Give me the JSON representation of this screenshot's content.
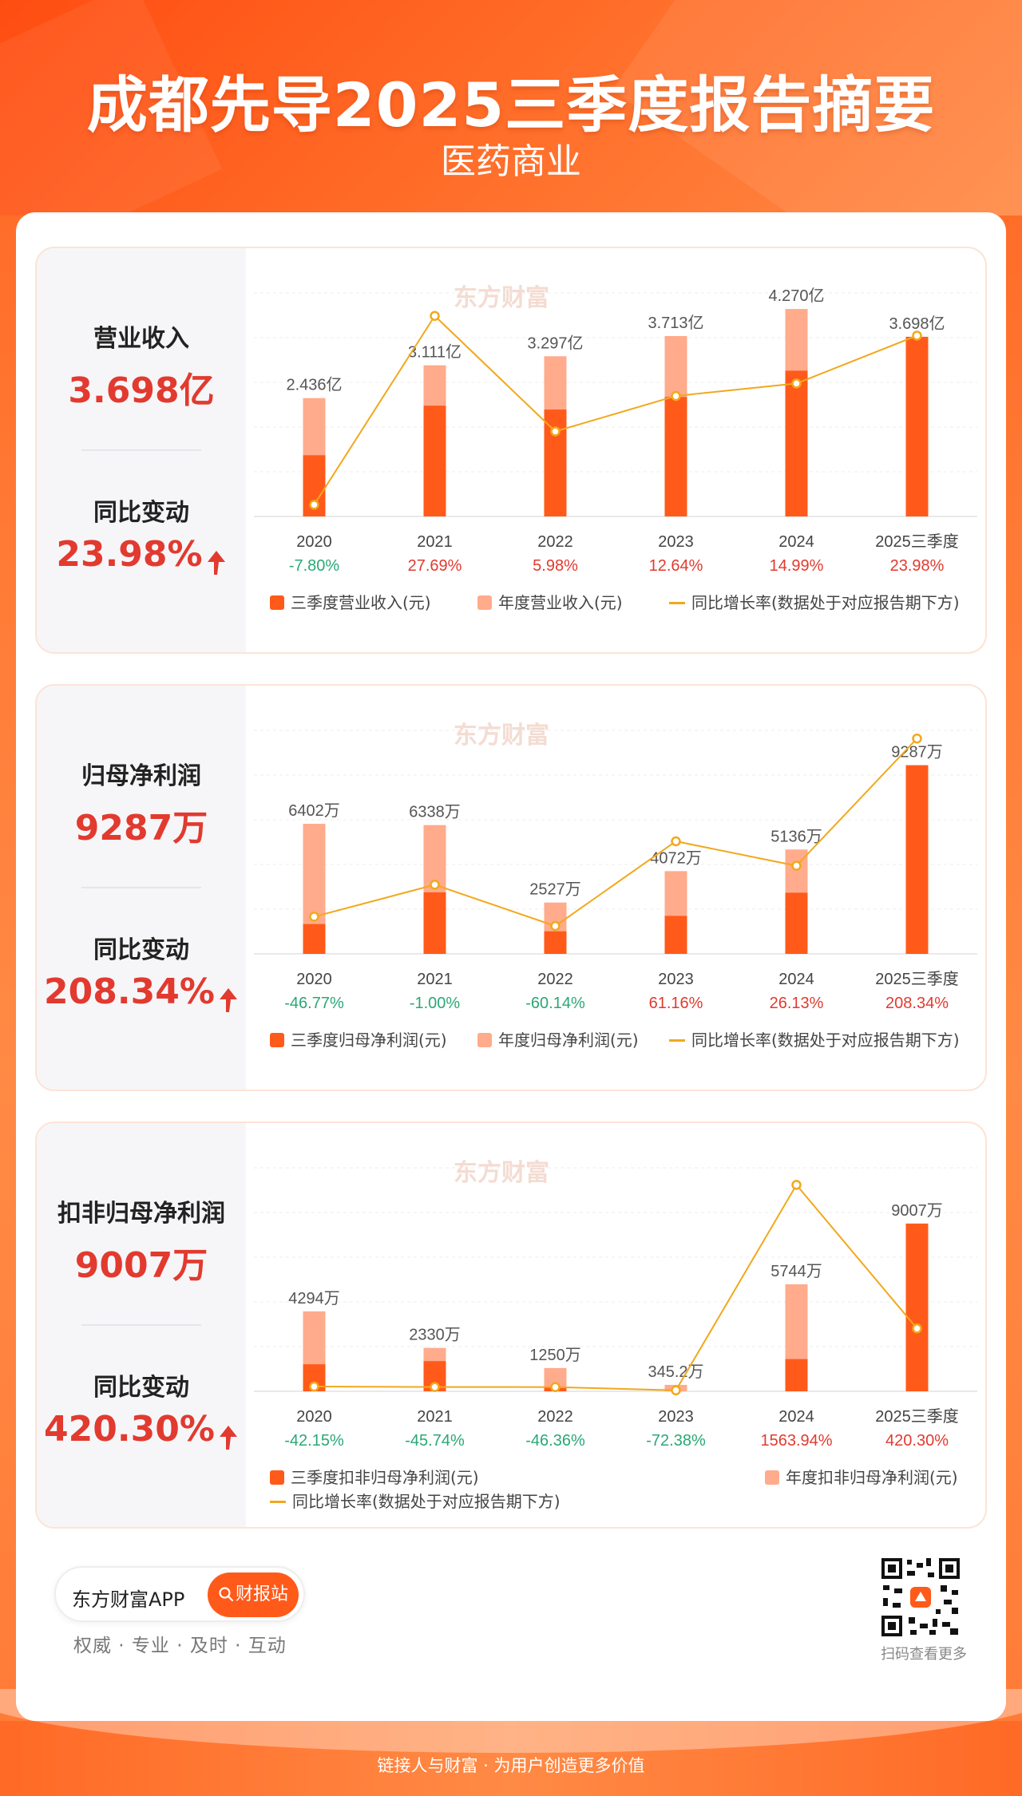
{
  "header": {
    "title": "成都先导2025三季度报告摘要",
    "subtitle": "医药商业"
  },
  "colors": {
    "bar_q3": "#ff5a1a",
    "bar_annual": "#ffab8c",
    "line": "#f2a81c",
    "positive": "#e23a2f",
    "negative": "#2aa876",
    "watermark": "东方财富"
  },
  "sections": [
    {
      "metric_label": "营业收入",
      "metric_value": "3.698亿",
      "yoy_label": "同比变动",
      "yoy_value": "23.98%",
      "legend": {
        "q3": "三季度营业收入(元)",
        "annual": "年度营业收入(元)",
        "line": "同比增长率(数据处于对应报告期下方)"
      }
    },
    {
      "metric_label": "归母净利润",
      "metric_value": "9287万",
      "yoy_label": "同比变动",
      "yoy_value": "208.34%",
      "legend": {
        "q3": "三季度归母净利润(元)",
        "annual": "年度归母净利润(元)",
        "line": "同比增长率(数据处于对应报告期下方)"
      }
    },
    {
      "metric_label": "扣非归母净利润",
      "metric_value": "9007万",
      "yoy_label": "同比变动",
      "yoy_value": "420.30%",
      "legend": {
        "q3": "三季度扣非归母净利润(元)",
        "annual": "年度扣非归母净利润(元)",
        "line": "同比增长率(数据处于对应报告期下方)"
      }
    }
  ],
  "chart_data": [
    {
      "type": "bar",
      "categories": [
        "2020",
        "2021",
        "2022",
        "2023",
        "2024",
        "2025三季度"
      ],
      "unit": "亿",
      "series": [
        {
          "name": "三季度营业收入(元)",
          "values": [
            1.26,
            2.28,
            2.2,
            2.46,
            3.0,
            3.698
          ]
        },
        {
          "name": "年度营业收入(元)",
          "values": [
            2.436,
            3.111,
            3.297,
            3.713,
            4.27,
            null
          ]
        },
        {
          "name": "同比增长率(数据处于对应报告期下方)",
          "values": [
            -7.8,
            27.69,
            5.98,
            12.64,
            14.99,
            23.98
          ]
        }
      ],
      "value_labels": [
        "2.436亿",
        "3.111亿",
        "3.297亿",
        "3.713亿",
        "4.270亿",
        "3.698亿"
      ],
      "yoy_labels": [
        "-7.80%",
        "27.69%",
        "5.98%",
        "12.64%",
        "14.99%",
        "23.98%"
      ],
      "bar_max": 4.6,
      "line_range": [
        -10,
        32
      ]
    },
    {
      "type": "bar",
      "categories": [
        "2020",
        "2021",
        "2022",
        "2023",
        "2024",
        "2025三季度"
      ],
      "unit": "万",
      "series": [
        {
          "name": "三季度归母净利润(元)",
          "values": [
            1470,
            3030,
            1110,
            1870,
            3010,
            9287
          ]
        },
        {
          "name": "年度归母净利润(元)",
          "values": [
            6402,
            6338,
            2527,
            4072,
            5136,
            null
          ]
        },
        {
          "name": "同比增长率(数据处于对应报告期下方)",
          "values": [
            -46.77,
            -1.0,
            -60.14,
            61.16,
            26.13,
            208.34
          ]
        }
      ],
      "value_labels": [
        "6402万",
        "6338万",
        "2527万",
        "4072万",
        "5136万",
        "9287万"
      ],
      "yoy_labels": [
        "-46.77%",
        "-1.00%",
        "-60.14%",
        "61.16%",
        "26.13%",
        "208.34%"
      ],
      "bar_max": 11000,
      "line_range": [
        -100,
        220
      ]
    },
    {
      "type": "bar",
      "categories": [
        "2020",
        "2021",
        "2022",
        "2023",
        "2024",
        "2025三季度"
      ],
      "unit": "万",
      "series": [
        {
          "name": "三季度扣非归母净利润(元)",
          "values": [
            1450,
            1620,
            230,
            0,
            1730,
            9007
          ]
        },
        {
          "name": "年度扣非归母净利润(元)",
          "values": [
            4294,
            2330,
            1250,
            345.2,
            5744,
            null
          ]
        },
        {
          "name": "同比增长率(数据处于对应报告期下方)",
          "values": [
            -42.15,
            -45.74,
            -46.36,
            -72.38,
            1563.94,
            420.3
          ]
        }
      ],
      "value_labels": [
        "4294万",
        "2330万",
        "1250万",
        "345.2万",
        "5744万",
        "9007万"
      ],
      "yoy_labels": [
        "-42.15%",
        "-45.74%",
        "-46.36%",
        "-72.38%",
        "1563.94%",
        "420.30%"
      ],
      "bar_max": 12000,
      "line_range": [
        -80,
        1700
      ]
    }
  ],
  "footer": {
    "app_name": "东方财富APP",
    "app_button": "财报站",
    "tagline": "权威 · 专业 · 及时 · 互动",
    "qr_label": "扫码查看更多",
    "slogan": "链接人与财富 · 为用户创造更多价值"
  }
}
